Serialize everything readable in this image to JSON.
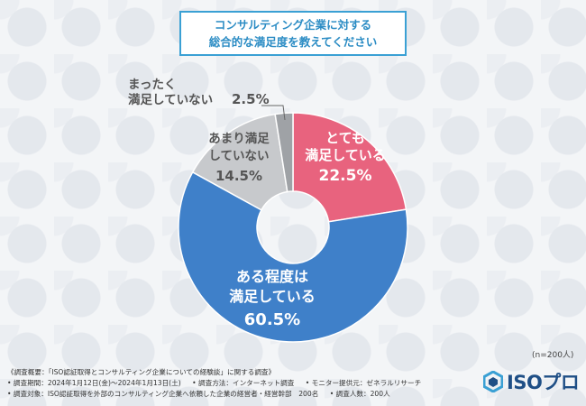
{
  "title": {
    "line1": "コンサルティング企業に対する",
    "line2": "総合的な満足度を教えてください"
  },
  "chart_data": {
    "type": "pie",
    "donut": true,
    "categories": [
      "とても満足している",
      "ある程度は満足している",
      "あまり満足していない",
      "まったく満足していない"
    ],
    "values": [
      22.5,
      60.5,
      14.5,
      2.5
    ],
    "unit": "%",
    "value_labels": [
      "22.5%",
      "60.5%",
      "14.5%",
      "2.5%"
    ],
    "label_lines": [
      [
        "とても",
        "満足している"
      ],
      [
        "ある程度は",
        "満足している"
      ],
      [
        "あまり満足",
        "していない"
      ],
      [
        "まったく",
        "満足していない"
      ]
    ],
    "colors": [
      "#e8637e",
      "#3f80c9",
      "#c7c9cc",
      "#9fa2a6"
    ]
  },
  "sample_note": "(n=200人)",
  "footer": {
    "line1": "《調査概要：「ISO認証取得とコンサルティング企業についての経験談」に関する調査》",
    "line2a": "• 調査期間：2024年1月12日(金)〜2024年1月13日(土)",
    "line2b": "• 調査方法：インターネット調査",
    "line2c": "• モニター提供元：ゼネラルリサーチ",
    "line3a": "• 調査対象：ISO認証取得を外部のコンサルティング企業へ依頼した企業の経営者・経営幹部　200名",
    "line3b": "• 調査人数：200人"
  },
  "logo": {
    "text": "ISOプロ",
    "icon": "hexagon-logo-icon"
  }
}
